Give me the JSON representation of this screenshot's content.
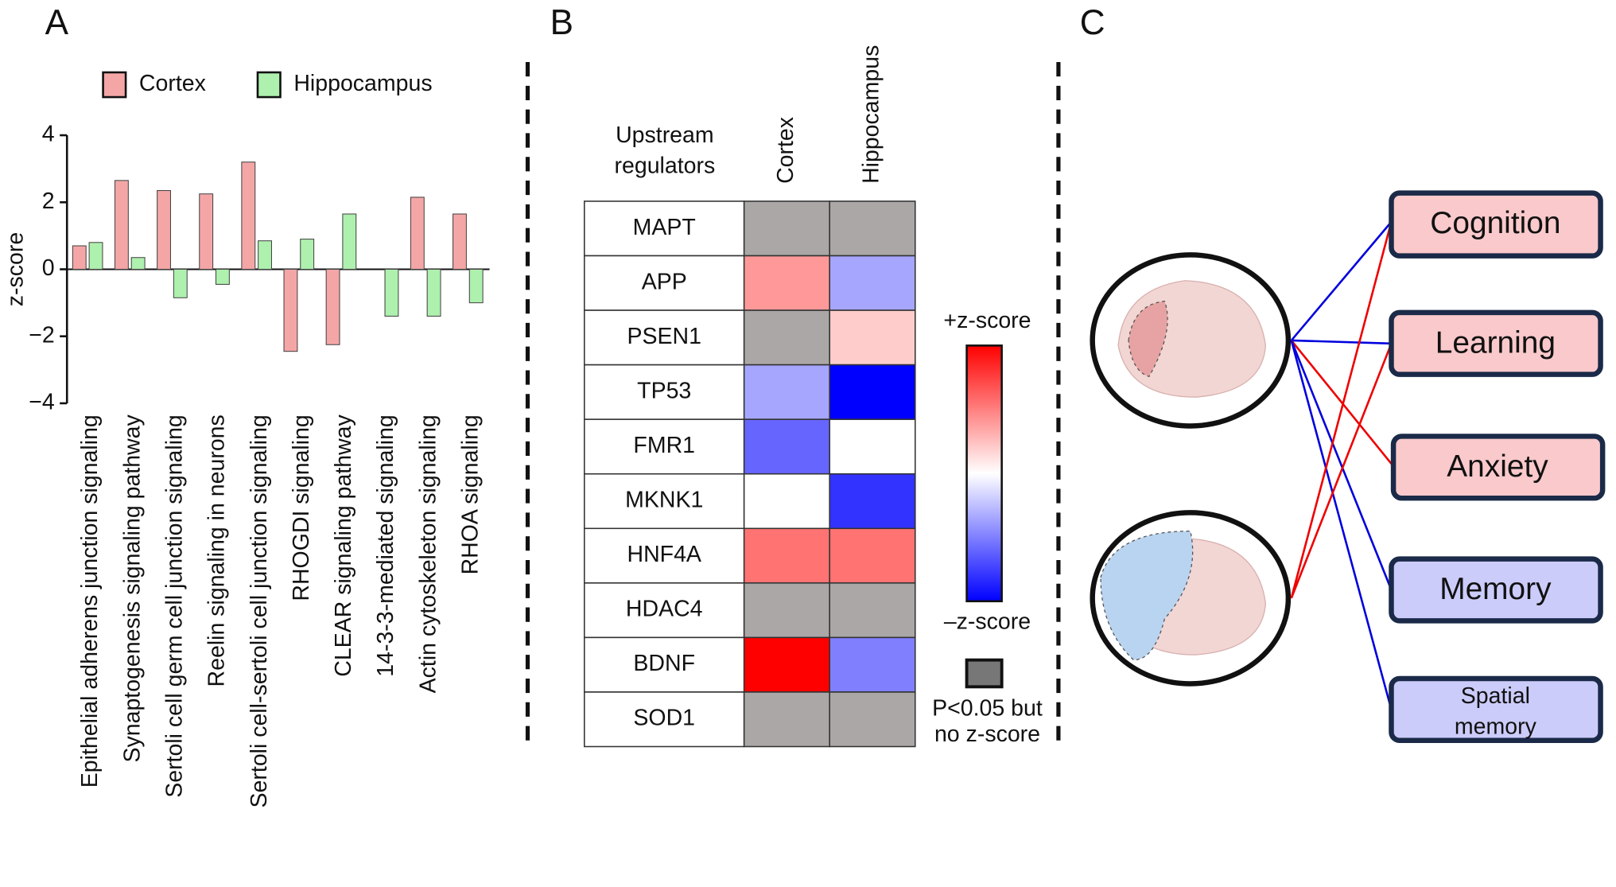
{
  "panels": [
    "A",
    "B",
    "C"
  ],
  "chart_data": [
    {
      "type": "bar",
      "ylabel": "z-score",
      "categories": [
        "Epithelial adherens junction signaling",
        "Synaptogenesis signaling pathway",
        "Sertoli cell germ cell junction signaling",
        "Reelin signaling in neurons",
        "Sertoli cell-sertoli cell junction signaling",
        "RHOGDI signaling",
        "CLEAR signaling pathway",
        "14-3-3-mediated signaling",
        "Actin cytoskeleton signaling",
        "RHOA signaling"
      ],
      "series": [
        {
          "name": "Cortex",
          "color": "#f4a6a6",
          "values": [
            0.7,
            2.65,
            2.35,
            2.25,
            3.2,
            -2.45,
            -2.25,
            null,
            2.15,
            1.65
          ]
        },
        {
          "name": "Hippocampus",
          "color": "#aef0ae",
          "values": [
            0.8,
            0.35,
            -0.85,
            -0.45,
            0.85,
            0.9,
            1.65,
            -1.4,
            -1.4,
            -1.0
          ]
        }
      ],
      "ylim": [
        -4,
        4
      ],
      "yticks": [
        {
          "value": -4,
          "label": "−4"
        },
        {
          "value": -2,
          "label": "−2"
        },
        0,
        2,
        4
      ]
    },
    {
      "type": "heatmap",
      "row_header": [
        "Upstream",
        "regulators"
      ],
      "columns": [
        "Cortex",
        "Hippocampus"
      ],
      "rows": [
        "MAPT",
        "APP",
        "PSEN1",
        "TP53",
        "FMR1",
        "MKNK1",
        "HNF4A",
        "HDAC4",
        "BDNF",
        "SOD1"
      ],
      "values": [
        [
          null,
          null
        ],
        [
          0.4,
          -0.35
        ],
        [
          null,
          0.2
        ],
        [
          -0.35,
          -1
        ],
        [
          -0.6,
          0
        ],
        [
          0,
          -0.8
        ],
        [
          0.55,
          0.55
        ],
        [
          null,
          null
        ],
        [
          1,
          -0.5
        ],
        [
          null,
          null
        ]
      ],
      "zlim": [
        -1,
        1
      ],
      "high_color": "#ff0000",
      "low_color": "#0000ff",
      "na_color": "#aba7a7",
      "colorbar_labels": {
        "high": "+z-score",
        "low": "–z-score"
      },
      "na_label": [
        "P<0.05 but",
        "no z-score"
      ]
    }
  ],
  "diagram": {
    "nodes": [
      {
        "label": "Cognition"
      },
      {
        "label": "Learning"
      },
      {
        "label": "Anxiety"
      },
      {
        "label": "Memory"
      },
      {
        "label": "Spatial",
        "label2": "memory"
      }
    ]
  }
}
